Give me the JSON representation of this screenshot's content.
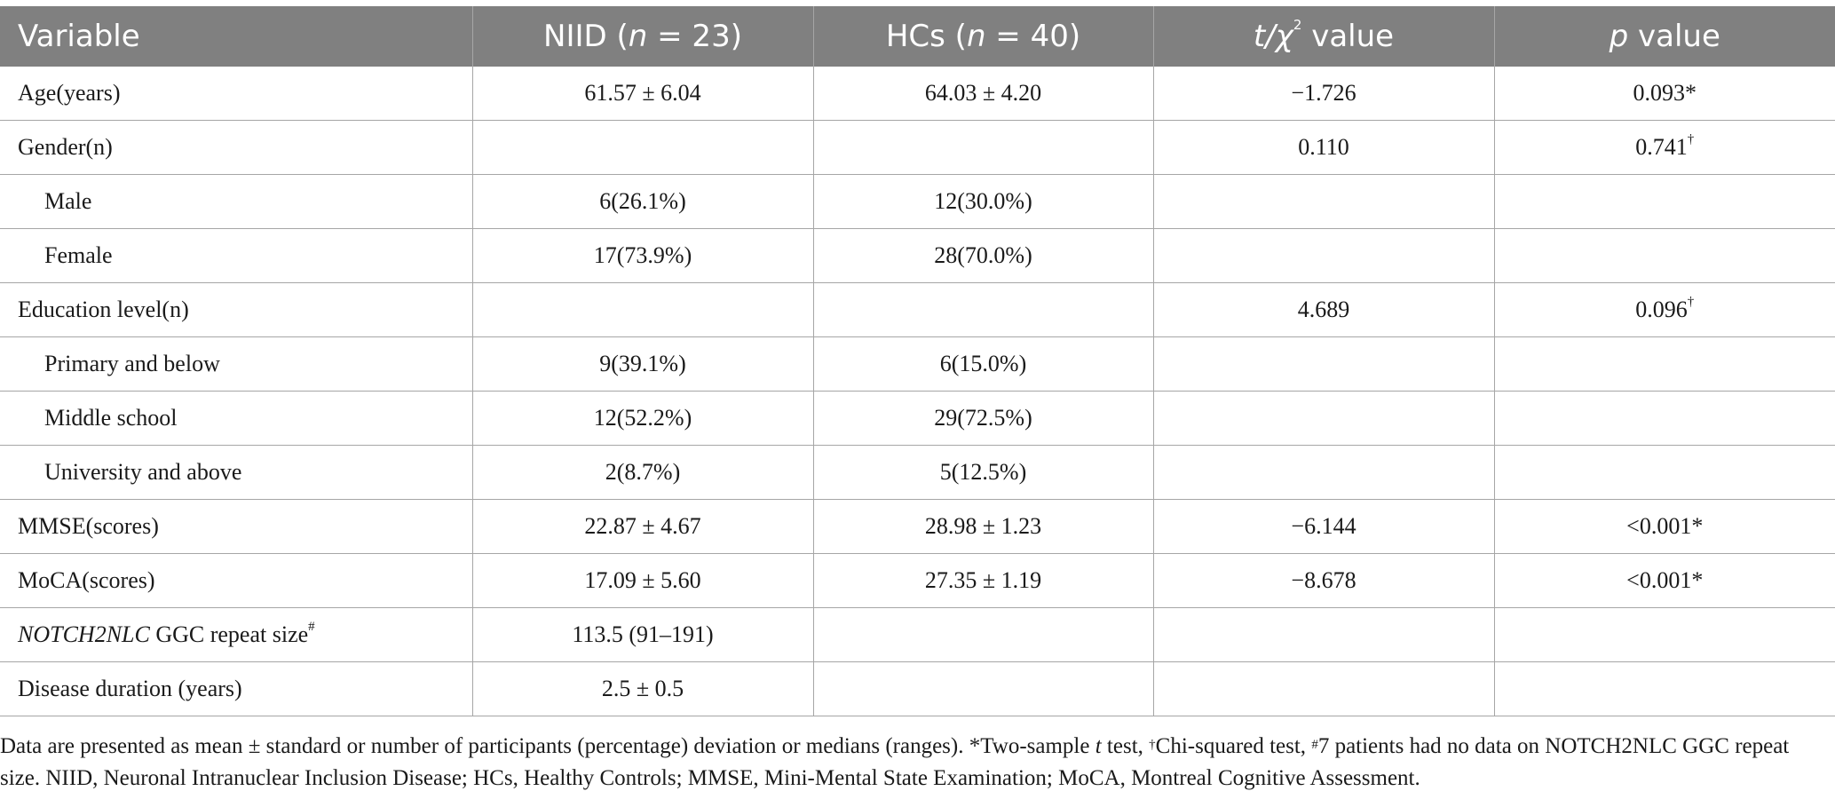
{
  "table": {
    "header": {
      "variable": "Variable",
      "niid_pre": "NIID (",
      "niid_n": "n",
      "niid_post": " = 23)",
      "hcs_pre": "HCs (",
      "hcs_n": "n",
      "hcs_post": " = 40)",
      "stat_t": "t/χ",
      "stat_sup": "2",
      "stat_post": " value",
      "p_p": "p",
      "p_post": " value"
    },
    "rows": [
      {
        "label": "Age(years)",
        "niid": "61.57 ± 6.04",
        "hcs": "64.03 ± 4.20",
        "stat": "−1.726",
        "p": "0.093*"
      },
      {
        "label": "Gender(n)",
        "niid": "",
        "hcs": "",
        "stat": "0.110",
        "p": "0.741",
        "p_sup": "†"
      },
      {
        "label": "Male",
        "niid": "6(26.1%)",
        "hcs": "12(30.0%)",
        "stat": "",
        "p": ""
      },
      {
        "label": "Female",
        "niid": "17(73.9%)",
        "hcs": "28(70.0%)",
        "stat": "",
        "p": ""
      },
      {
        "label": "Education level(n)",
        "niid": "",
        "hcs": "",
        "stat": "4.689",
        "p": "0.096",
        "p_sup": "†"
      },
      {
        "label": "Primary and below",
        "niid": "9(39.1%)",
        "hcs": "6(15.0%)",
        "stat": "",
        "p": ""
      },
      {
        "label": "Middle school",
        "niid": "12(52.2%)",
        "hcs": "29(72.5%)",
        "stat": "",
        "p": ""
      },
      {
        "label": "University and above",
        "niid": "2(8.7%)",
        "hcs": "5(12.5%)",
        "stat": "",
        "p": ""
      },
      {
        "label": "MMSE(scores)",
        "niid": "22.87 ± 4.67",
        "hcs": "28.98 ± 1.23",
        "stat": "−6.144",
        "p": "<0.001*"
      },
      {
        "label": "MoCA(scores)",
        "niid": "17.09 ± 5.60",
        "hcs": "27.35 ± 1.19",
        "stat": "−8.678",
        "p": "<0.001*"
      },
      {
        "label_italic": "NOTCH2NLC",
        "label_rest": " GGC repeat size",
        "label_sup": "#",
        "niid": "113.5 (91–191)",
        "hcs": "",
        "stat": "",
        "p": ""
      },
      {
        "label": "Disease duration (years)",
        "niid": "2.5 ± 0.5",
        "hcs": "",
        "stat": "",
        "p": ""
      }
    ]
  },
  "footnote": {
    "text1": "Data are presented as mean ± standard or number of participants (percentage) deviation or medians (ranges). *Two-sample ",
    "t": "t",
    "text2": " test, ",
    "dagger": "†",
    "text3": "Chi-squared test, ",
    "hash": "#",
    "text4": "7 patients had no data on NOTCH2NLC GGC repeat size. NIID, Neuronal Intranuclear Inclusion Disease; HCs, Healthy Controls; MMSE, Mini-Mental State Examination; MoCA, Montreal Cognitive Assessment."
  }
}
